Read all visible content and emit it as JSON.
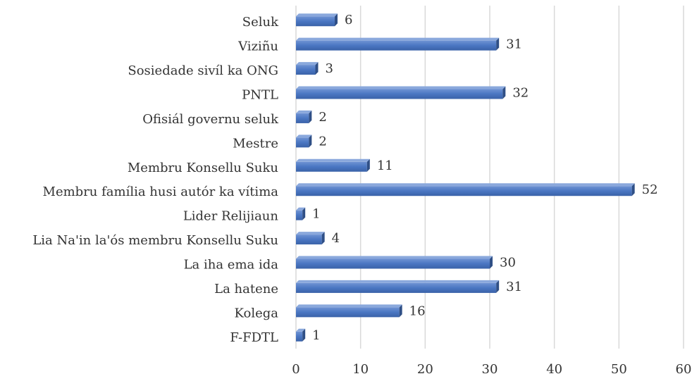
{
  "chart_data": {
    "type": "hbar",
    "categories": [
      "Seluk",
      "Viziñu",
      "Sosiedade sivíl ka ONG",
      "PNTL",
      "Ofisiál governu seluk",
      "Mestre",
      "Membru Konsellu Suku",
      "Membru família husi autór ka vítima",
      "Lider Relijiaun",
      "Lia Na'in la'ós membru Konsellu Suku",
      "La iha ema ida",
      "La hatene",
      "Kolega",
      "F-FDTL"
    ],
    "values": [
      6,
      31,
      3,
      32,
      2,
      2,
      11,
      52,
      1,
      4,
      30,
      31,
      16,
      1
    ],
    "color": "#4472c4",
    "xlim": [
      0,
      60
    ],
    "xticks": [
      0,
      10,
      20,
      30,
      40,
      50,
      60
    ],
    "grid": true
  }
}
